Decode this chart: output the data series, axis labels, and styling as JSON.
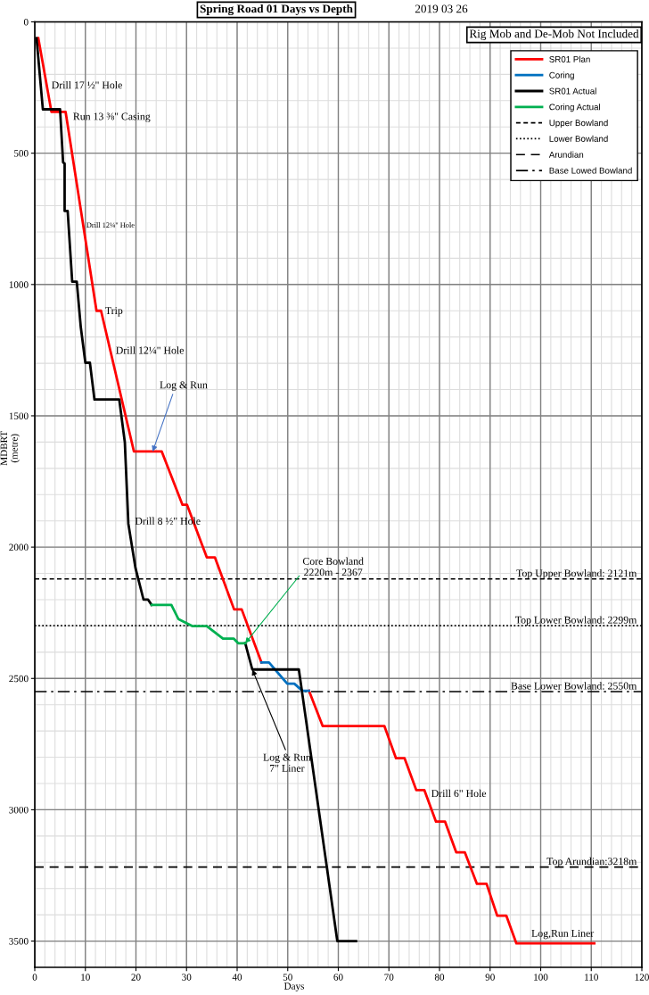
{
  "chart_data": {
    "type": "line",
    "title": "Spring Road 01 Days vs Depth",
    "subtitle": "2019 03 26",
    "xlabel": "Days",
    "ylabel": "MDBRT\n(metre)",
    "xlim": [
      0,
      120
    ],
    "xticks": [
      0,
      10,
      20,
      30,
      40,
      50,
      60,
      70,
      80,
      90,
      100,
      110,
      120
    ],
    "ylim": [
      3600,
      0
    ],
    "yticks": [
      0,
      500,
      1000,
      1500,
      2000,
      2500,
      3000,
      3500
    ],
    "grid": true,
    "legend": "top right",
    "series": [
      {
        "name": "SR01 Plan",
        "color": "#ff0000",
        "x": [
          0.7,
          3.3,
          6.1,
          12.2,
          13.1,
          19.6,
          25.1,
          29.2,
          30.1,
          34.0,
          35.6,
          39.4,
          40.9,
          44.8,
          49.5,
          54.2,
          56.9,
          69.1,
          71.4,
          73.1,
          75.4,
          77.0,
          79.3,
          81.1,
          83.3,
          85.0,
          87.4,
          89.3,
          91.4,
          93.2,
          95.2,
          110.6
        ],
        "values": [
          62,
          343,
          343,
          1100,
          1100,
          1636,
          1636,
          1839,
          1839,
          2039,
          2039,
          2237,
          2237,
          2439,
          null,
          2547,
          2681,
          2681,
          2804,
          2804,
          2925,
          2925,
          3045,
          3045,
          3162,
          3162,
          3282,
          3282,
          3403,
          3403,
          3509,
          3509
        ]
      },
      {
        "name": "Coring",
        "color": "#0070c0",
        "x": [
          44.8,
          46.3,
          49.9,
          51.3,
          52.9,
          54.2
        ],
        "values": [
          2439,
          2439,
          2520,
          2520,
          2547,
          2547
        ]
      },
      {
        "name": "SR01 Actual",
        "color": "#000000",
        "x": [
          0.35,
          1.6,
          5.0,
          5.6,
          5.9,
          5.9,
          6.5,
          7.4,
          8.3,
          9.1,
          10.0,
          10.9,
          11.8,
          16.7,
          17.8,
          18.5,
          19.9,
          21.5,
          22.4,
          23.1,
          32.0,
          41.6,
          43.0,
          51.8,
          52.2,
          59.8,
          63.5
        ],
        "values": [
          62,
          333,
          333,
          535,
          540,
          720,
          720,
          989,
          989,
          1163,
          1298,
          1298,
          1438,
          1438,
          1601,
          1911,
          2079,
          2200,
          2200,
          2220,
          null,
          2366,
          2466,
          2466,
          2466,
          3500,
          3500
        ]
      },
      {
        "name": "Coring Actual",
        "color": "#00b050",
        "x": [
          23.1,
          27.0,
          28.4,
          31.2,
          34.0,
          37.2,
          39.3,
          40.2,
          41.6
        ],
        "values": [
          2220,
          2220,
          2274,
          2301,
          2301,
          2348,
          2348,
          2366,
          2366
        ]
      },
      {
        "name": "Upper Bowland",
        "color": "#000000",
        "line_style": "dashed",
        "x": [
          0,
          120
        ],
        "values": [
          2121,
          2121
        ]
      },
      {
        "name": "Lower Bowland",
        "color": "#000000",
        "line_style": "dotted",
        "x": [
          0,
          120
        ],
        "values": [
          2299,
          2299
        ]
      },
      {
        "name": "Arundian",
        "color": "#000000",
        "line_style": "loosely dashed",
        "x": [
          0,
          120
        ],
        "values": [
          3218,
          3218
        ]
      },
      {
        "name": "Base Lowed Bowland",
        "color": "#000000",
        "line_style": "dashdot",
        "x": [
          0,
          120
        ],
        "values": [
          2550,
          2550
        ]
      }
    ],
    "annotations": [
      "Rig Mob and De-Mob Not Included",
      {
        "text": "Drill 17 ½\" Hole",
        "x": 3.3,
        "y": 244
      },
      "Run 13 ⅜\" Casing",
      {
        "text": "Drill 12¼\" Hole",
        "x": 10.2,
        "y": 776
      },
      {
        "text": "Trip",
        "x": 13.9,
        "y": 1103
      },
      {
        "text": "Drill 12¼\" Hole",
        "x": 16.0,
        "y": 1254
      },
      {
        "text": "Log & Run",
        "x": 23.3,
        "y": 1636
      },
      "Drill 8 ½\" Hole",
      {
        "text": "Core Bowland\n2220m - 2367",
        "x": 41.6,
        "y": 2366
      },
      {
        "text": "Log & Run\n7\" Liner",
        "x": 43.0,
        "y": 2466
      },
      "Drill 6\" Hole",
      "Log,Run Liner",
      {
        "text": "Top Upper Bowland: 2121m",
        "x": 119,
        "y": 2121
      },
      {
        "text": "Top Lower Bowland: 2299m",
        "x": 119,
        "y": 2299
      },
      {
        "text": "Base Lower Bowland: 2550m",
        "x": 119,
        "y": 2550
      },
      {
        "text": "Top Arundian:3218m",
        "x": 119,
        "y": 3218
      }
    ]
  }
}
